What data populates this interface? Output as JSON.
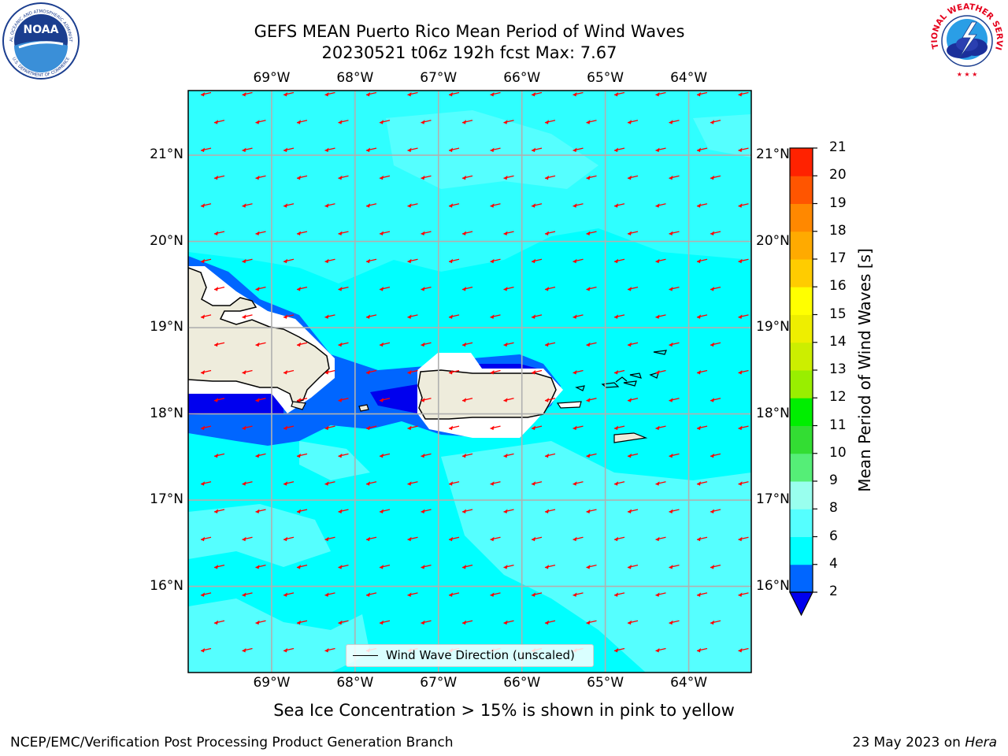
{
  "title": {
    "line1": "GEFS MEAN Puerto Rico Mean Period of Wind Waves",
    "line2": "20230521 t06z 192h fcst   Max: 7.67"
  },
  "logos": {
    "left": "noaa-logo",
    "right": "nws-logo",
    "noaa_text": "NOAA",
    "noaa_ring_top": "NATIONAL OCEANIC AND ATMOSPHERIC ADMINISTRATION",
    "noaa_ring_bottom": "U.S. DEPARTMENT OF COMMERCE",
    "nws_ring": "NATIONAL WEATHER SERVICE"
  },
  "map": {
    "lon_labels": [
      "69°W",
      "68°W",
      "67°W",
      "66°W",
      "65°W",
      "64°W"
    ],
    "lat_labels": [
      "21°N",
      "20°N",
      "19°N",
      "18°N",
      "17°N",
      "16°N"
    ],
    "lon_ticks": [
      -69,
      -68,
      -67,
      -66,
      -65,
      -64
    ],
    "lat_ticks": [
      21,
      20,
      19,
      18,
      17,
      16
    ],
    "lon_range": [
      -70.0,
      -63.25
    ],
    "lat_range": [
      15.0,
      21.75
    ],
    "legend_label": "Wind Wave Direction (unscaled)",
    "arrow_color": "#ff0000",
    "land_color": "#eeecdc",
    "arrow_direction": "toward west-southwest"
  },
  "colorbar": {
    "label": "Mean Period of Wind Waves [s]",
    "ticks": [
      "2",
      "4",
      "6",
      "8",
      "9",
      "10",
      "11",
      "12",
      "13",
      "14",
      "15",
      "16",
      "17",
      "18",
      "19",
      "20",
      "21"
    ],
    "colors": [
      "#0066ff",
      "#00ccff",
      "#00ffff",
      "#55ffff",
      "#99ffee",
      "#55ee77",
      "#33dd33",
      "#00ee00",
      "#99ee00",
      "#ccee00",
      "#eeee00",
      "#ffff00",
      "#ffcc00",
      "#ffaa00",
      "#ff8800",
      "#ff5500",
      "#ff2200",
      "#ff0000"
    ],
    "extend_color": "#0000ee"
  },
  "note": "Sea Ice Concentration > 15% is shown in pink to yellow",
  "footer": {
    "left": "NCEP/EMC/Verification Post Processing Product Generation Branch",
    "right_prefix": "23 May 2023 on ",
    "right_host": "Hera"
  }
}
